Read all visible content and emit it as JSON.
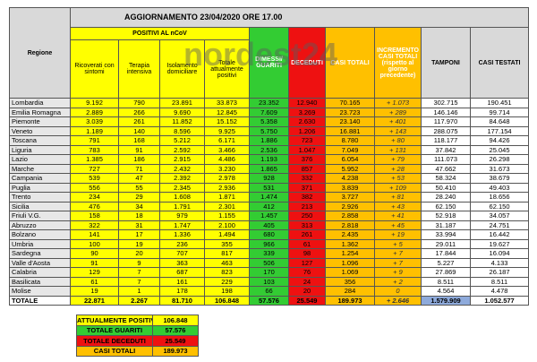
{
  "header": {
    "title": "AGGIORNAMENTO 23/04/2020 ORE 17.00",
    "group": "POSITIVI AL nCoV",
    "columns": [
      "Regione",
      "Ricoverati con sintomi",
      "Terapia intensiva",
      "Isolamento domiciliare",
      "Totale attualmente positivi",
      "DIMESSI/ GUARITI",
      "DECEDUTI",
      "CASI TOTALI",
      "INCREMENTO CASI TOTALI (rispetto al giorno precedente)",
      "TAMPONI",
      "CASI TESTATI"
    ]
  },
  "watermark": "nordest24",
  "table": {
    "rows": [
      [
        "Lombardia",
        "9.192",
        "790",
        "23.891",
        "33.873",
        "23.352",
        "12.940",
        "70.165",
        "+ 1.073",
        "302.715",
        "190.451"
      ],
      [
        "Emilia Romagna",
        "2.889",
        "266",
        "9.690",
        "12.845",
        "7.609",
        "3.269",
        "23.723",
        "+ 289",
        "146.146",
        "99.714"
      ],
      [
        "Piemonte",
        "3.039",
        "261",
        "11.852",
        "15.152",
        "5.358",
        "2.630",
        "23.140",
        "+ 401",
        "117.970",
        "84.648"
      ],
      [
        "Veneto",
        "1.189",
        "140",
        "8.596",
        "9.925",
        "5.750",
        "1.206",
        "16.881",
        "+ 143",
        "288.075",
        "177.154"
      ],
      [
        "Toscana",
        "791",
        "168",
        "5.212",
        "6.171",
        "1.886",
        "723",
        "8.780",
        "+ 80",
        "118.177",
        "94.426"
      ],
      [
        "Liguria",
        "783",
        "91",
        "2.592",
        "3.466",
        "2.536",
        "1.047",
        "7.049",
        "+ 131",
        "37.842",
        "25.045"
      ],
      [
        "Lazio",
        "1.385",
        "186",
        "2.915",
        "4.486",
        "1.193",
        "376",
        "6.054",
        "+ 79",
        "111.073",
        "26.298"
      ],
      [
        "Marche",
        "727",
        "71",
        "2.432",
        "3.230",
        "1.865",
        "857",
        "5.952",
        "+ 28",
        "47.662",
        "31.673"
      ],
      [
        "Campania",
        "539",
        "47",
        "2.392",
        "2.978",
        "928",
        "332",
        "4.238",
        "+ 53",
        "58.324",
        "38.679"
      ],
      [
        "Puglia",
        "556",
        "55",
        "2.345",
        "2.936",
        "531",
        "371",
        "3.839",
        "+ 109",
        "50.410",
        "49.403"
      ],
      [
        "Trento",
        "234",
        "29",
        "1.608",
        "1.871",
        "1.474",
        "382",
        "3.727",
        "+ 81",
        "28.240",
        "18.656"
      ],
      [
        "Sicilia",
        "476",
        "34",
        "1.791",
        "2.301",
        "412",
        "213",
        "2.926",
        "+ 43",
        "62.150",
        "62.150"
      ],
      [
        "Friuli V.G.",
        "158",
        "18",
        "979",
        "1.155",
        "1.457",
        "250",
        "2.858",
        "+ 41",
        "52.918",
        "34.057"
      ],
      [
        "Abruzzo",
        "322",
        "31",
        "1.747",
        "2.100",
        "405",
        "313",
        "2.818",
        "+ 45",
        "31.187",
        "24.751"
      ],
      [
        "Bolzano",
        "141",
        "17",
        "1.336",
        "1.494",
        "680",
        "261",
        "2.435",
        "+ 19",
        "33.994",
        "16.442"
      ],
      [
        "Umbria",
        "100",
        "19",
        "236",
        "355",
        "966",
        "61",
        "1.362",
        "+ 5",
        "29.011",
        "19.627"
      ],
      [
        "Sardegna",
        "90",
        "20",
        "707",
        "817",
        "339",
        "98",
        "1.254",
        "+ 7",
        "17.844",
        "16.094"
      ],
      [
        "Valle d'Aosta",
        "91",
        "9",
        "363",
        "463",
        "506",
        "127",
        "1.096",
        "+ 7",
        "5.227",
        "4.133"
      ],
      [
        "Calabria",
        "129",
        "7",
        "687",
        "823",
        "170",
        "76",
        "1.069",
        "+ 9",
        "27.869",
        "26.187"
      ],
      [
        "Basilicata",
        "61",
        "7",
        "161",
        "229",
        "103",
        "24",
        "356",
        "+ 2",
        "8.511",
        "8.511"
      ],
      [
        "Molise",
        "19",
        "1",
        "178",
        "198",
        "66",
        "20",
        "284",
        "0",
        "4.564",
        "4.478"
      ],
      [
        "TOTALE",
        "22.871",
        "2.267",
        "81.710",
        "106.848",
        "57.576",
        "25.549",
        "189.973",
        "+ 2.646",
        "1.579.909",
        "1.052.577"
      ]
    ]
  },
  "summary": [
    [
      "ATTUALMENTE POSITIVI",
      "106.848"
    ],
    [
      "TOTALE GUARITI",
      "57.576"
    ],
    [
      "TOTALE DECEDUTI",
      "25.549"
    ],
    [
      "CASI TOTALI",
      "189.973"
    ]
  ]
}
